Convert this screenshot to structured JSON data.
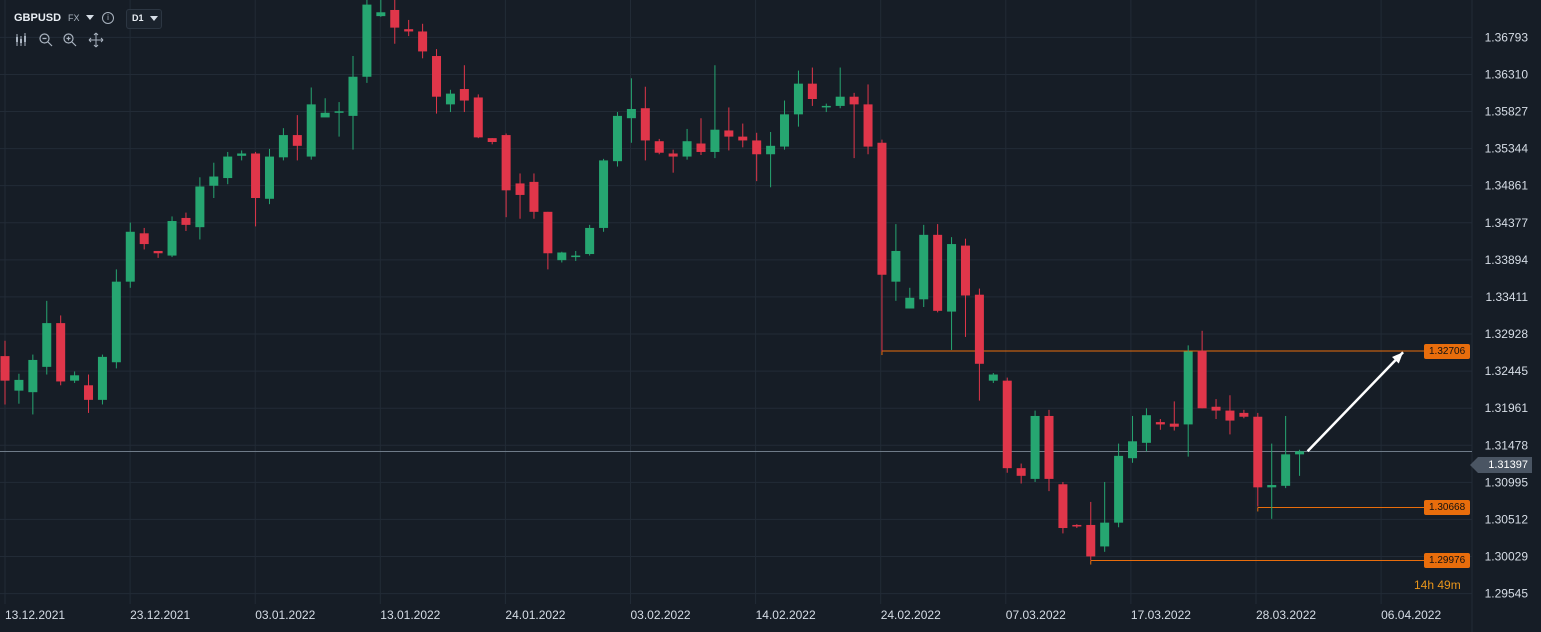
{
  "toolbar": {
    "symbol": "GBPUSD",
    "market": "FX",
    "timeframe": "D1",
    "icons": [
      "candlestick-type-icon",
      "zoom-out-icon",
      "zoom-in-icon",
      "pan-crosshair-icon"
    ]
  },
  "colors": {
    "background": "#161d26",
    "grid": "#222b36",
    "bull": "#26a671",
    "bear": "#e0364a",
    "level": "#e86d0c",
    "current_price_line": "#6f7b88",
    "arrow": "#ffffff",
    "timer": "#e8951b"
  },
  "current_price": {
    "value": 1.31397,
    "label": "1.31397"
  },
  "countdown": "14h 49m",
  "chart_data": {
    "type": "candlestick",
    "symbol": "GBPUSD",
    "timeframe": "D1",
    "grid": true,
    "ylim": [
      1.2941,
      1.3728
    ],
    "y_ticks": [
      1.29545,
      1.30029,
      1.30512,
      1.30995,
      1.31478,
      1.31961,
      1.32445,
      1.32928,
      1.33411,
      1.33894,
      1.34377,
      1.34861,
      1.35344,
      1.35827,
      1.3631,
      1.36793
    ],
    "y_tick_labels": [
      "1.29545",
      "1.30029",
      "1.30512",
      "1.30995",
      "1.31478",
      "1.31961",
      "1.32445",
      "1.32928",
      "1.33411",
      "1.33894",
      "1.34377",
      "1.34861",
      "1.35344",
      "1.35827",
      "1.36310",
      "1.36793"
    ],
    "x_tick_labels": [
      "13.12.2021",
      "23.12.2021",
      "03.01.2022",
      "13.01.2022",
      "24.01.2022",
      "03.02.2022",
      "14.02.2022",
      "24.02.2022",
      "07.03.2022",
      "17.03.2022",
      "28.03.2022",
      "06.04.2022"
    ],
    "candles": [
      [
        1.3264,
        1.3232,
        1.3284,
        1.3201
      ],
      [
        1.3219,
        1.3233,
        1.3241,
        1.3202
      ],
      [
        1.3217,
        1.3259,
        1.3266,
        1.3188
      ],
      [
        1.325,
        1.3307,
        1.3336,
        1.324
      ],
      [
        1.3307,
        1.3231,
        1.3317,
        1.3226
      ],
      [
        1.3232,
        1.3239,
        1.3244,
        1.3229
      ],
      [
        1.3226,
        1.3207,
        1.324,
        1.319
      ],
      [
        1.3207,
        1.3263,
        1.3266,
        1.3201
      ],
      [
        1.3256,
        1.3361,
        1.3377,
        1.3248
      ],
      [
        1.3361,
        1.3426,
        1.3438,
        1.3353
      ],
      [
        1.3424,
        1.341,
        1.3431,
        1.3403
      ],
      [
        1.3401,
        1.3398,
        1.3401,
        1.3392
      ],
      [
        1.3395,
        1.344,
        1.3446,
        1.3393
      ],
      [
        1.3444,
        1.3435,
        1.3451,
        1.3427
      ],
      [
        1.3432,
        1.3485,
        1.3497,
        1.3416
      ],
      [
        1.3486,
        1.3498,
        1.3516,
        1.347
      ],
      [
        1.3496,
        1.3524,
        1.353,
        1.3488
      ],
      [
        1.3525,
        1.3528,
        1.3532,
        1.3519
      ],
      [
        1.3528,
        1.347,
        1.353,
        1.3433
      ],
      [
        1.3469,
        1.3524,
        1.3534,
        1.3462
      ],
      [
        1.3523,
        1.3552,
        1.3561,
        1.3519
      ],
      [
        1.3552,
        1.3538,
        1.3578,
        1.3519
      ],
      [
        1.3524,
        1.3592,
        1.3614,
        1.352
      ],
      [
        1.3575,
        1.3581,
        1.36,
        1.3576
      ],
      [
        1.3583,
        1.3583,
        1.3595,
        1.355
      ],
      [
        1.3577,
        1.3628,
        1.3655,
        1.3533
      ],
      [
        1.3628,
        1.3722,
        1.3744,
        1.362
      ],
      [
        1.3707,
        1.3712,
        1.3748,
        1.3706
      ],
      [
        1.3715,
        1.3692,
        1.3747,
        1.3671
      ],
      [
        1.369,
        1.3687,
        1.3702,
        1.3681
      ],
      [
        1.3687,
        1.3661,
        1.3697,
        1.3652
      ],
      [
        1.3655,
        1.3602,
        1.3664,
        1.358
      ],
      [
        1.3592,
        1.3606,
        1.3611,
        1.3582
      ],
      [
        1.3612,
        1.3597,
        1.3643,
        1.3582
      ],
      [
        1.3601,
        1.3549,
        1.3605,
        1.3548
      ],
      [
        1.3548,
        1.3543,
        1.3548,
        1.354
      ],
      [
        1.3552,
        1.348,
        1.3554,
        1.3445
      ],
      [
        1.3489,
        1.3474,
        1.3502,
        1.3443
      ],
      [
        1.3491,
        1.3452,
        1.3502,
        1.3443
      ],
      [
        1.3452,
        1.3398,
        1.3452,
        1.3377
      ],
      [
        1.3389,
        1.3399,
        1.34,
        1.3386
      ],
      [
        1.3393,
        1.3395,
        1.3401,
        1.3388
      ],
      [
        1.3397,
        1.3431,
        1.3435,
        1.3395
      ],
      [
        1.3431,
        1.3519,
        1.3521,
        1.3426
      ],
      [
        1.3518,
        1.3577,
        1.3582,
        1.3511
      ],
      [
        1.3574,
        1.3586,
        1.3626,
        1.3542
      ],
      [
        1.3587,
        1.3545,
        1.3615,
        1.3519
      ],
      [
        1.3544,
        1.3529,
        1.3547,
        1.3527
      ],
      [
        1.3528,
        1.3524,
        1.3533,
        1.3503
      ],
      [
        1.3524,
        1.3544,
        1.356,
        1.352
      ],
      [
        1.3541,
        1.353,
        1.3574,
        1.3526
      ],
      [
        1.353,
        1.3559,
        1.3643,
        1.3522
      ],
      [
        1.3558,
        1.355,
        1.3588,
        1.3532
      ],
      [
        1.355,
        1.3545,
        1.3567,
        1.3536
      ],
      [
        1.3545,
        1.3527,
        1.3555,
        1.3492
      ],
      [
        1.3527,
        1.3538,
        1.3556,
        1.3484
      ],
      [
        1.3537,
        1.3579,
        1.3597,
        1.3533
      ],
      [
        1.3579,
        1.3619,
        1.3636,
        1.3563
      ],
      [
        1.3619,
        1.3599,
        1.364,
        1.359
      ],
      [
        1.359,
        1.359,
        1.3593,
        1.3582
      ],
      [
        1.359,
        1.3602,
        1.364,
        1.3587
      ],
      [
        1.3602,
        1.3592,
        1.3607,
        1.3522
      ],
      [
        1.3592,
        1.3537,
        1.3618,
        1.3527
      ],
      [
        1.3542,
        1.337,
        1.3546,
        1.327
      ],
      [
        1.3361,
        1.3401,
        1.3436,
        1.3336
      ],
      [
        1.3326,
        1.334,
        1.3353,
        1.3326
      ],
      [
        1.3338,
        1.3422,
        1.3435,
        1.3328
      ],
      [
        1.3422,
        1.3323,
        1.3436,
        1.3321
      ],
      [
        1.3322,
        1.341,
        1.3419,
        1.3272
      ],
      [
        1.3408,
        1.3343,
        1.3417,
        1.3289
      ],
      [
        1.3344,
        1.3254,
        1.3352,
        1.3206
      ],
      [
        1.3232,
        1.324,
        1.3242,
        1.3229
      ],
      [
        1.3232,
        1.3118,
        1.3236,
        1.3112
      ],
      [
        1.3118,
        1.3108,
        1.3124,
        1.3098
      ],
      [
        1.3104,
        1.3186,
        1.3193,
        1.31
      ],
      [
        1.3186,
        1.3104,
        1.3194,
        1.3088
      ],
      [
        1.3097,
        1.304,
        1.31,
        1.3033
      ],
      [
        1.3044,
        1.3042,
        1.3045,
        1.304
      ],
      [
        1.3044,
        1.3003,
        1.3074,
        1.2998
      ],
      [
        1.3016,
        1.3047,
        1.31,
        1.3009
      ],
      [
        1.3047,
        1.3134,
        1.315,
        1.3041
      ],
      [
        1.3131,
        1.3153,
        1.3186,
        1.3125
      ],
      [
        1.3151,
        1.3187,
        1.3196,
        1.314
      ],
      [
        1.3178,
        1.3175,
        1.3182,
        1.3168
      ],
      [
        1.3176,
        1.3172,
        1.3205,
        1.3167
      ],
      [
        1.3175,
        1.327,
        1.3278,
        1.3133
      ],
      [
        1.3271,
        1.3196,
        1.3297,
        1.3196
      ],
      [
        1.3198,
        1.3193,
        1.3208,
        1.3182
      ],
      [
        1.3193,
        1.318,
        1.3213,
        1.3162
      ],
      [
        1.319,
        1.3185,
        1.3194,
        1.3183
      ],
      [
        1.3185,
        1.3093,
        1.319,
        1.3068
      ],
      [
        1.3093,
        1.3096,
        1.315,
        1.3052
      ],
      [
        1.3095,
        1.3136,
        1.3186,
        1.3092
      ],
      [
        1.3136,
        1.314,
        1.3142,
        1.3108
      ]
    ],
    "levels": [
      {
        "label": "1.32706",
        "value": 1.32706,
        "from_index": 63
      },
      {
        "label": "1.30668",
        "value": 1.30668,
        "from_index": 90
      },
      {
        "label": "1.29976",
        "value": 1.29976,
        "from_index": 78
      }
    ],
    "arrow": {
      "from_index": 93,
      "from_price": 1.314,
      "to_index": 99,
      "to_price": 1.3269
    },
    "current_price": 1.31397
  }
}
